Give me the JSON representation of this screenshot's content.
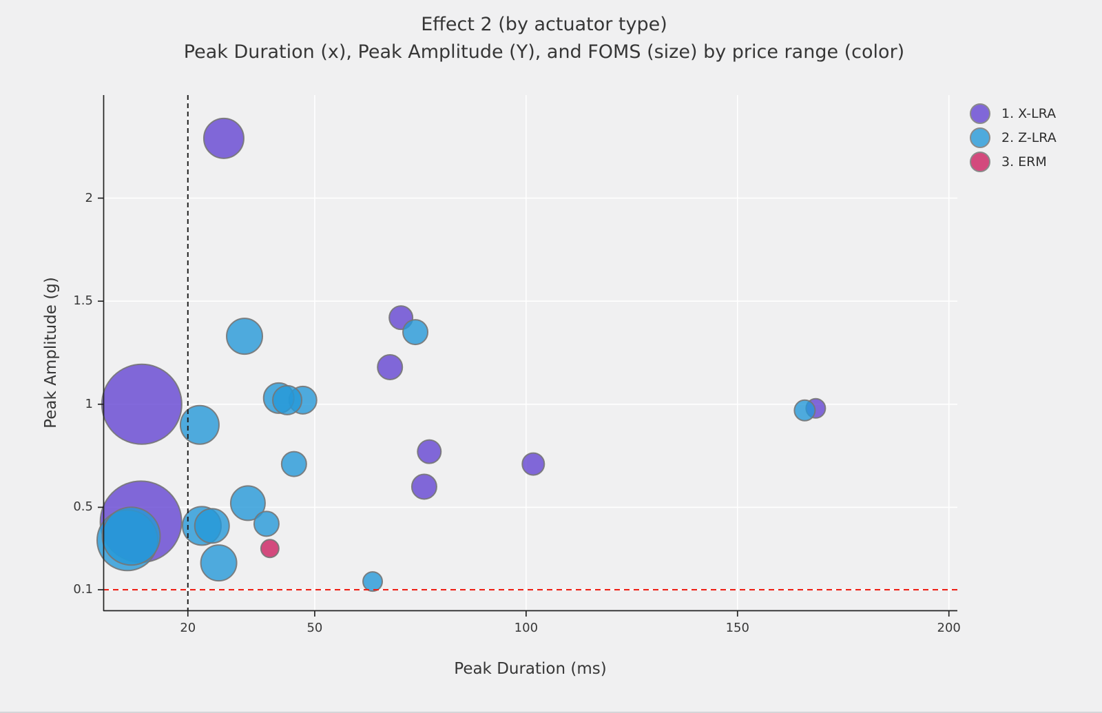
{
  "chart_data": {
    "type": "scatter",
    "variant": "bubble",
    "title": "Effect 2 (by actuator type)",
    "subtitle": "Peak Duration (x), Peak Amplitude (Y), and FOMS (size) by price range (color)",
    "xlabel": "Peak Duration (ms)",
    "ylabel": "Peak Amplitude (g)",
    "xlim": [
      0,
      202
    ],
    "ylim": [
      0,
      2.5
    ],
    "x_ticks": [
      {
        "value": 20,
        "label": "20"
      },
      {
        "value": 50,
        "label": "50"
      },
      {
        "value": 100,
        "label": "100"
      },
      {
        "value": 150,
        "label": "150"
      },
      {
        "value": 200,
        "label": "200"
      }
    ],
    "y_ticks": [
      {
        "value": 0.1,
        "label": "0.1"
      },
      {
        "value": 0.5,
        "label": "0.5"
      },
      {
        "value": 1,
        "label": "1"
      },
      {
        "value": 1.5,
        "label": "1.5"
      },
      {
        "value": 2,
        "label": "2"
      }
    ],
    "grid": true,
    "grid_color": "#ffffff",
    "legend_position": "upper-right",
    "reference_lines": {
      "vline_x": 20,
      "vline_color": "#1e1e1e",
      "vline_style": "dashed",
      "hline_y": 0.1,
      "hline_color": "#ee2218",
      "hline_style": "dashed"
    },
    "bubble_opacity": 0.8,
    "bubble_stroke_color": "#757575",
    "groups": [
      {
        "key": "X-LRA",
        "label": "1. X-LRA",
        "color": "#6445d2"
      },
      {
        "key": "Z-LRA",
        "label": "2. Z-LRA",
        "color": "#2599d8"
      },
      {
        "key": "ERM",
        "label": "3. ERM",
        "color": "#cc2060"
      }
    ],
    "size_encoding": "FOMS (bubble radius in px)",
    "points": [
      {
        "group": "X-LRA",
        "x": 9.1,
        "y": 1.0,
        "r": 58
      },
      {
        "group": "X-LRA",
        "x": 8.9,
        "y": 0.43,
        "r": 59
      },
      {
        "group": "Z-LRA",
        "x": 5.7,
        "y": 0.34,
        "r": 44
      },
      {
        "group": "Z-LRA",
        "x": 6.6,
        "y": 0.36,
        "r": 42
      },
      {
        "group": "Z-LRA",
        "x": 22.8,
        "y": 0.9,
        "r": 28
      },
      {
        "group": "Z-LRA",
        "x": 33.4,
        "y": 1.33,
        "r": 26
      },
      {
        "group": "X-LRA",
        "x": 28.5,
        "y": 2.29,
        "r": 29
      },
      {
        "group": "Z-LRA",
        "x": 23.3,
        "y": 0.41,
        "r": 28
      },
      {
        "group": "Z-LRA",
        "x": 25.7,
        "y": 0.41,
        "r": 25
      },
      {
        "group": "Z-LRA",
        "x": 27.3,
        "y": 0.23,
        "r": 26
      },
      {
        "group": "Z-LRA",
        "x": 34.2,
        "y": 0.52,
        "r": 25
      },
      {
        "group": "Z-LRA",
        "x": 38.6,
        "y": 0.42,
        "r": 18
      },
      {
        "group": "ERM",
        "x": 39.4,
        "y": 0.3,
        "r": 13
      },
      {
        "group": "Z-LRA",
        "x": 47.2,
        "y": 1.02,
        "r": 20
      },
      {
        "group": "Z-LRA",
        "x": 41.5,
        "y": 1.03,
        "r": 22
      },
      {
        "group": "Z-LRA",
        "x": 43.5,
        "y": 1.02,
        "r": 21
      },
      {
        "group": "Z-LRA",
        "x": 45.1,
        "y": 0.71,
        "r": 18
      },
      {
        "group": "X-LRA",
        "x": 70.4,
        "y": 1.42,
        "r": 17
      },
      {
        "group": "Z-LRA",
        "x": 73.8,
        "y": 1.35,
        "r": 18
      },
      {
        "group": "X-LRA",
        "x": 67.8,
        "y": 1.18,
        "r": 18
      },
      {
        "group": "X-LRA",
        "x": 77.1,
        "y": 0.77,
        "r": 17
      },
      {
        "group": "X-LRA",
        "x": 75.9,
        "y": 0.6,
        "r": 18
      },
      {
        "group": "X-LRA",
        "x": 101.7,
        "y": 0.71,
        "r": 16
      },
      {
        "group": "Z-LRA",
        "x": 63.7,
        "y": 0.14,
        "r": 14
      },
      {
        "group": "X-LRA",
        "x": 168.5,
        "y": 0.98,
        "r": 14
      },
      {
        "group": "Z-LRA",
        "x": 165.9,
        "y": 0.97,
        "r": 15
      }
    ]
  }
}
